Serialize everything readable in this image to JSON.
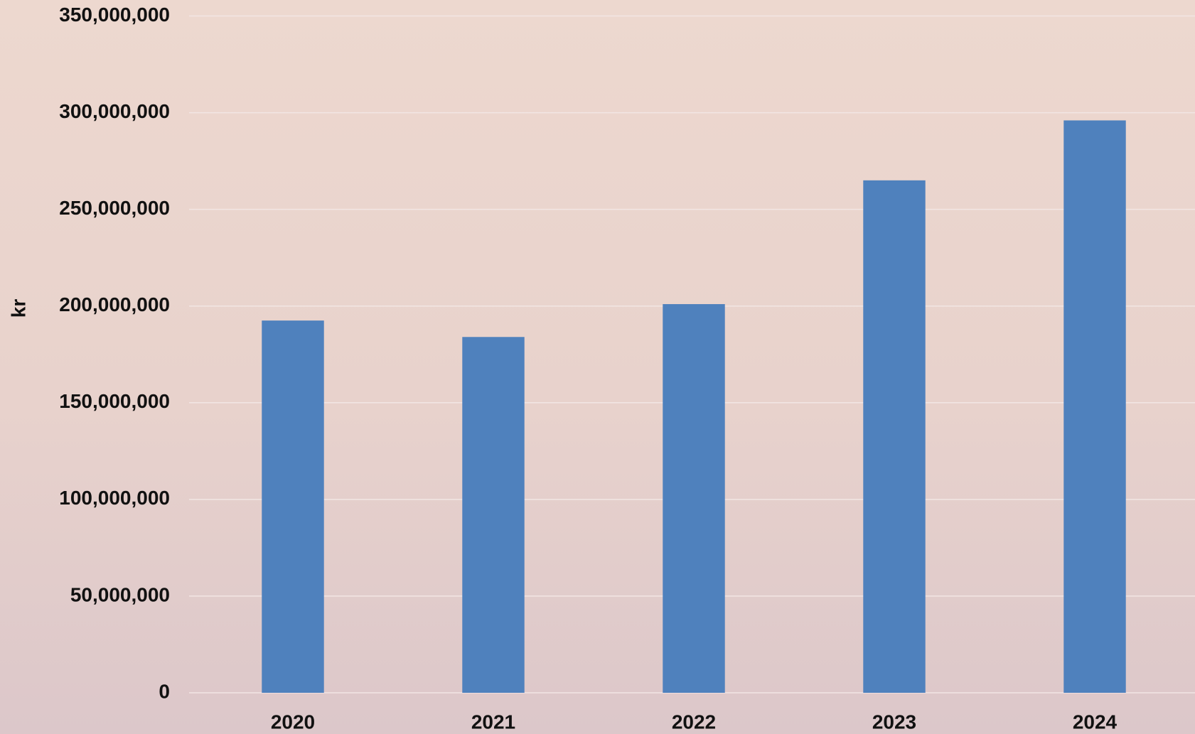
{
  "chart_data": {
    "type": "bar",
    "y_label": "kr",
    "categories": [
      "2020",
      "2021",
      "2022",
      "2023",
      "2024"
    ],
    "values": [
      192500000,
      184000000,
      201000000,
      265000000,
      296000000
    ],
    "color": "#4f81bd",
    "ylim": [
      0,
      350000000
    ],
    "yticks": [
      0,
      {
        "value": 50000000,
        "label": "50,000,000"
      },
      {
        "value": 100000000,
        "label": "100,000,000"
      },
      {
        "value": 150000000,
        "label": "150,000,000"
      },
      {
        "value": 200000000,
        "label": "200,000,000"
      },
      {
        "value": 250000000,
        "label": "250,000,000"
      },
      {
        "value": 300000000,
        "label": "300,000,000"
      },
      {
        "value": 350000000,
        "label": "350,000,000"
      }
    ],
    "grid": true
  }
}
